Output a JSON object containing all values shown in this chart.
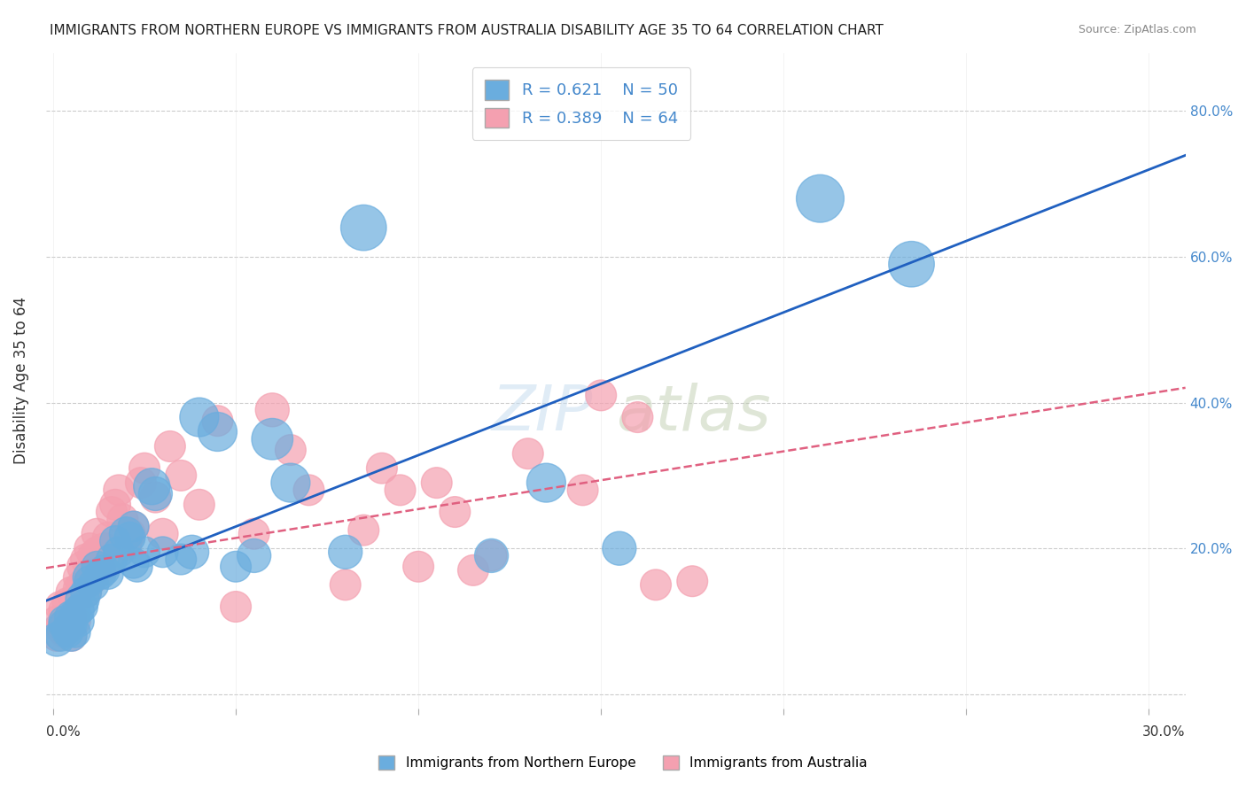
{
  "title": "IMMIGRANTS FROM NORTHERN EUROPE VS IMMIGRANTS FROM AUSTRALIA DISABILITY AGE 35 TO 64 CORRELATION CHART",
  "source": "Source: ZipAtlas.com",
  "ylabel": "Disability Age 35 to 64",
  "y_ticks": [
    0.0,
    0.2,
    0.4,
    0.6,
    0.8
  ],
  "y_tick_labels": [
    "",
    "20.0%",
    "40.0%",
    "60.0%",
    "80.0%"
  ],
  "x_ticks": [
    0.0,
    0.05,
    0.1,
    0.15,
    0.2,
    0.25,
    0.3
  ],
  "xlim": [
    -0.002,
    0.31
  ],
  "ylim": [
    -0.02,
    0.88
  ],
  "legend_r1": "R = 0.621",
  "legend_n1": "N = 50",
  "legend_r2": "R = 0.389",
  "legend_n2": "N = 64",
  "blue_color": "#6aadde",
  "pink_color": "#f4a0b0",
  "blue_line_color": "#2060c0",
  "pink_line_color": "#e06080",
  "blue_scatter_x": [
    0.001,
    0.002,
    0.003,
    0.003,
    0.004,
    0.004,
    0.005,
    0.005,
    0.005,
    0.006,
    0.006,
    0.007,
    0.007,
    0.008,
    0.008,
    0.009,
    0.01,
    0.01,
    0.011,
    0.012,
    0.013,
    0.014,
    0.015,
    0.016,
    0.017,
    0.018,
    0.02,
    0.021,
    0.022,
    0.022,
    0.023,
    0.025,
    0.027,
    0.028,
    0.03,
    0.035,
    0.038,
    0.04,
    0.045,
    0.05,
    0.055,
    0.06,
    0.065,
    0.08,
    0.085,
    0.12,
    0.135,
    0.155,
    0.21,
    0.235
  ],
  "blue_scatter_y": [
    0.075,
    0.08,
    0.095,
    0.1,
    0.09,
    0.085,
    0.08,
    0.095,
    0.105,
    0.11,
    0.085,
    0.115,
    0.1,
    0.13,
    0.12,
    0.14,
    0.16,
    0.155,
    0.15,
    0.175,
    0.165,
    0.17,
    0.165,
    0.185,
    0.21,
    0.195,
    0.22,
    0.215,
    0.23,
    0.18,
    0.175,
    0.195,
    0.285,
    0.275,
    0.195,
    0.185,
    0.195,
    0.38,
    0.36,
    0.175,
    0.19,
    0.35,
    0.29,
    0.195,
    0.64,
    0.19,
    0.29,
    0.2,
    0.68,
    0.59
  ],
  "blue_scatter_size": [
    30,
    25,
    25,
    25,
    25,
    25,
    25,
    25,
    30,
    25,
    25,
    25,
    25,
    30,
    25,
    25,
    30,
    25,
    25,
    25,
    25,
    25,
    25,
    25,
    25,
    25,
    30,
    25,
    25,
    25,
    25,
    25,
    35,
    30,
    25,
    25,
    30,
    40,
    40,
    25,
    30,
    45,
    40,
    30,
    55,
    30,
    40,
    30,
    60,
    55
  ],
  "pink_scatter_x": [
    0.001,
    0.001,
    0.002,
    0.002,
    0.003,
    0.003,
    0.004,
    0.004,
    0.005,
    0.005,
    0.005,
    0.006,
    0.006,
    0.007,
    0.007,
    0.008,
    0.008,
    0.009,
    0.009,
    0.01,
    0.01,
    0.011,
    0.011,
    0.012,
    0.012,
    0.013,
    0.014,
    0.015,
    0.015,
    0.016,
    0.017,
    0.018,
    0.019,
    0.02,
    0.021,
    0.022,
    0.024,
    0.025,
    0.028,
    0.03,
    0.032,
    0.035,
    0.04,
    0.045,
    0.05,
    0.055,
    0.06,
    0.065,
    0.07,
    0.08,
    0.085,
    0.09,
    0.095,
    0.1,
    0.105,
    0.11,
    0.115,
    0.12,
    0.13,
    0.145,
    0.15,
    0.16,
    0.165,
    0.175
  ],
  "pink_scatter_y": [
    0.08,
    0.1,
    0.09,
    0.12,
    0.085,
    0.115,
    0.095,
    0.125,
    0.08,
    0.105,
    0.14,
    0.1,
    0.13,
    0.145,
    0.16,
    0.15,
    0.175,
    0.14,
    0.185,
    0.155,
    0.2,
    0.16,
    0.19,
    0.195,
    0.22,
    0.17,
    0.2,
    0.18,
    0.215,
    0.25,
    0.26,
    0.28,
    0.24,
    0.205,
    0.22,
    0.23,
    0.29,
    0.31,
    0.27,
    0.22,
    0.34,
    0.3,
    0.26,
    0.375,
    0.12,
    0.22,
    0.39,
    0.335,
    0.28,
    0.15,
    0.225,
    0.31,
    0.28,
    0.175,
    0.29,
    0.25,
    0.17,
    0.19,
    0.33,
    0.28,
    0.41,
    0.38,
    0.15,
    0.155
  ],
  "pink_scatter_size": [
    25,
    25,
    25,
    25,
    25,
    25,
    25,
    25,
    25,
    25,
    25,
    25,
    25,
    25,
    25,
    25,
    25,
    25,
    25,
    25,
    25,
    25,
    25,
    25,
    25,
    25,
    25,
    25,
    25,
    25,
    25,
    25,
    25,
    25,
    25,
    25,
    25,
    25,
    25,
    25,
    25,
    25,
    25,
    25,
    25,
    25,
    30,
    25,
    25,
    25,
    25,
    25,
    25,
    25,
    25,
    25,
    25,
    25,
    25,
    25,
    25,
    25,
    25,
    25
  ],
  "big_blue_size": 400
}
